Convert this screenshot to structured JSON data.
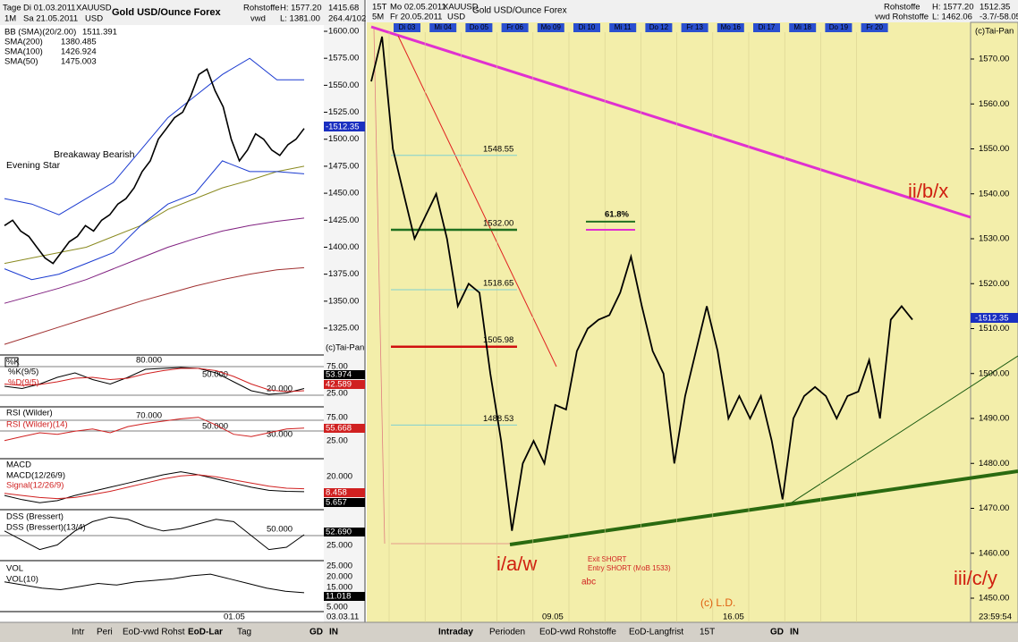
{
  "left": {
    "header": [
      "Tage",
      "Di 01.03.2011",
      "XAUUSD",
      "Gold USD/Ounce  Forex",
      "Rohstoffe",
      "1415.68",
      "1M",
      "Sa 21.05.2011",
      "USD",
      "vwd",
      "L: 1381.00",
      "264.4/102",
      "H: 1577.20"
    ],
    "legend": [
      {
        "name": "BB (SMA)(20/2.00)",
        "value": "1511.391",
        "color": "#1a3ad0"
      },
      {
        "name": "SMA(200)",
        "value": "1380.485",
        "color": "#a03030"
      },
      {
        "name": "SMA(100)",
        "value": "1426.924",
        "color": "#802080"
      },
      {
        "name": "SMA(50)",
        "value": "1475.003",
        "color": "#8a8a20"
      }
    ],
    "annotations": [
      "Breakaway Bearish",
      "Evening Star",
      "(c)Tai-Pan",
      "-1512.35"
    ],
    "yticks": [
      {
        "value": 1325,
        "label": "1325.00"
      },
      {
        "value": 1350,
        "label": "1350.00"
      },
      {
        "value": 1375,
        "label": "1375.00"
      },
      {
        "value": 1400,
        "label": "1400.00"
      },
      {
        "value": 1425,
        "label": "1425.00"
      },
      {
        "value": 1450,
        "label": "1450.00"
      },
      {
        "value": 1475,
        "label": "1475.00"
      },
      {
        "value": 1500,
        "label": "1500.00"
      },
      {
        "value": 1525,
        "label": "1525.00"
      },
      {
        "value": 1550,
        "label": "1550.00"
      },
      {
        "value": 1575,
        "label": "1575.00"
      },
      {
        "value": 1600,
        "label": "1600.00"
      }
    ],
    "series": [
      {
        "name": "XAUUSD",
        "color": "#000000",
        "values": [
          1420,
          1425,
          1415,
          1410,
          1400,
          1390,
          1385,
          1395,
          1405,
          1410,
          1420,
          1415,
          1425,
          1430,
          1440,
          1445,
          1455,
          1470,
          1480,
          1500,
          1510,
          1520,
          1525,
          1540,
          1560,
          1565,
          1545,
          1530,
          1500,
          1480,
          1490,
          1505,
          1500,
          1490,
          1485,
          1495,
          1500,
          1510
        ]
      },
      {
        "name": "BB upper",
        "color": "#1a3ad0",
        "values": [
          1445,
          1440,
          1430,
          1445,
          1460,
          1490,
          1520,
          1540,
          1560,
          1575,
          1555,
          1555
        ]
      },
      {
        "name": "BB lower",
        "color": "#1a3ad0",
        "values": [
          1380,
          1370,
          1375,
          1385,
          1395,
          1420,
          1440,
          1450,
          1480,
          1470,
          1470,
          1468
        ]
      },
      {
        "name": "SMA(50)",
        "color": "#8a8a20",
        "values": [
          1385,
          1390,
          1395,
          1400,
          1410,
          1420,
          1435,
          1445,
          1455,
          1462,
          1470,
          1475
        ]
      },
      {
        "name": "SMA(100)",
        "color": "#802080",
        "values": [
          1348,
          1355,
          1362,
          1370,
          1380,
          1390,
          1400,
          1408,
          1415,
          1420,
          1424,
          1427
        ]
      },
      {
        "name": "SMA(200)",
        "color": "#a03030",
        "values": [
          1310,
          1318,
          1326,
          1334,
          1342,
          1350,
          1357,
          1364,
          1370,
          1375,
          1379,
          1381
        ]
      }
    ],
    "indicators": [
      {
        "title": "%K",
        "labels": [
          "%K(9/5)",
          "%D(9/5)"
        ],
        "levels": [
          "80.000",
          "50.000",
          "20.000"
        ],
        "scale": [
          "75.00",
          "53.974",
          "42.589",
          "25.00"
        ],
        "ylim": [
          0,
          100
        ],
        "series": [
          {
            "color": "#000000",
            "values": [
              40,
              35,
              45,
              60,
              70,
              55,
              45,
              60,
              78,
              80,
              82,
              80,
              70,
              50,
              30,
              22,
              25,
              35
            ]
          },
          {
            "color": "#d02020",
            "values": [
              45,
              42,
              44,
              50,
              58,
              60,
              55,
              58,
              68,
              75,
              80,
              80,
              75,
              62,
              45,
              32,
              28,
              30
            ]
          }
        ]
      },
      {
        "title": "RSI (Wilder)",
        "labels": [
          "RSI (Wilder)(14)"
        ],
        "levels": [
          "70.000",
          "50.000",
          "30.000"
        ],
        "scale": [
          "75.00",
          "55.668",
          "25.00"
        ],
        "ylim": [
          20,
          80
        ],
        "series": [
          {
            "color": "#d02020",
            "values": [
              40,
              45,
              50,
              48,
              52,
              55,
              50,
              58,
              62,
              65,
              68,
              70,
              60,
              48,
              45,
              50,
              55,
              56
            ]
          }
        ]
      },
      {
        "title": "MACD",
        "labels": [
          "MACD(12/26/9)",
          "Signal(12/26/9)"
        ],
        "levels": [],
        "scale": [
          "20.000",
          "8.458",
          "5.657"
        ],
        "ylim": [
          -10,
          35
        ],
        "series": [
          {
            "color": "#000000",
            "values": [
              2,
              -2,
              -5,
              -3,
              2,
              6,
              10,
              14,
              18,
              22,
              25,
              22,
              18,
              14,
              10,
              7,
              6,
              5.7
            ]
          },
          {
            "color": "#d02020",
            "values": [
              4,
              2,
              0,
              -1,
              0,
              3,
              6,
              10,
              14,
              18,
              21,
              22,
              20,
              17,
              14,
              11,
              9,
              8.5
            ]
          }
        ]
      },
      {
        "title": "DSS (Bressert)",
        "labels": [
          "DSS (Bressert)(13/4)"
        ],
        "levels": [
          "50.000"
        ],
        "scale": [
          "52.690",
          "25.000"
        ],
        "ylim": [
          0,
          100
        ],
        "series": [
          {
            "color": "#000000",
            "values": [
              60,
              40,
              20,
              30,
              60,
              80,
              90,
              85,
              70,
              60,
              65,
              75,
              85,
              80,
              50,
              20,
              25,
              52
            ]
          }
        ]
      },
      {
        "title": "VOL",
        "labels": [
          "VOL(10)"
        ],
        "levels": [],
        "scale": [
          "25.000",
          "20.000",
          "15.000",
          "11.018",
          "5.000"
        ],
        "ylim": [
          0,
          30
        ],
        "series": [
          {
            "color": "#000000",
            "values": [
              18,
              16,
              14,
              13,
              15,
              17,
              16,
              18,
              19,
              20,
              22,
              23,
              20,
              17,
              14,
              12,
              11
            ]
          }
        ]
      }
    ],
    "footer": [
      "01.05",
      "03.03.11"
    ],
    "toolbar": [
      "Intr",
      "Peri",
      "EoD-vwd Rohst",
      "EoD-Lar",
      "Tag",
      "GD",
      "IN"
    ]
  },
  "right": {
    "header": [
      "15T",
      "Mo 02.05.2011",
      "XAUUSD",
      "Gold USD/Ounce  Forex",
      "5M",
      "Fr 20.05.2011",
      "USD",
      "Rohstoffe",
      "vwd Rohstoffe",
      "H: 1577.20",
      "L: 1462.06",
      "1512.35",
      "-3.7/-58.05"
    ],
    "days": [
      "Di 03",
      "Mi 04",
      "Do 05",
      "Fr 06",
      "Mo 09",
      "Di 10",
      "Mi 11",
      "Do 12",
      "Fr 13",
      "Mo 16",
      "Di 17",
      "Mi 18",
      "Do 19",
      "Fr 20"
    ],
    "yticks": [
      {
        "value": 1450,
        "label": "1450.00"
      },
      {
        "value": 1460,
        "label": "1460.00"
      },
      {
        "value": 1470,
        "label": "1470.00"
      },
      {
        "value": 1480,
        "label": "1480.00"
      },
      {
        "value": 1490,
        "label": "1490.00"
      },
      {
        "value": 1500,
        "label": "1500.00"
      },
      {
        "value": 1510,
        "label": "1510.00"
      },
      {
        "value": 1520,
        "label": "1520.00"
      },
      {
        "value": 1530,
        "label": "1530.00"
      },
      {
        "value": 1540,
        "label": "1540.00"
      },
      {
        "value": 1550,
        "label": "1550.00"
      },
      {
        "value": 1560,
        "label": "1560.00"
      },
      {
        "value": 1570,
        "label": "1570.00"
      }
    ],
    "levels": [
      {
        "value": 1548.55,
        "label": "1548.55",
        "color": "#7fd0d0"
      },
      {
        "value": 1532,
        "label": "1532.00",
        "color": "#207020"
      },
      {
        "value": 1518.65,
        "label": "1518.65",
        "color": "#7fd0d0"
      },
      {
        "value": 1505.98,
        "label": "1505.98",
        "color": "#d01010"
      },
      {
        "value": 1488.53,
        "label": "1488.53",
        "color": "#7fd0d0"
      }
    ],
    "fib": {
      "label": "61.8%",
      "values": [
        1533,
        1532
      ]
    },
    "series": [
      {
        "name": "XAUUSD",
        "color": "#000000",
        "values": [
          1565,
          1575,
          1550,
          1540,
          1530,
          1535,
          1540,
          1530,
          1515,
          1520,
          1518,
          1500,
          1485,
          1465,
          1480,
          1485,
          1480,
          1493,
          1492,
          1505,
          1510,
          1512,
          1513,
          1518,
          1526,
          1515,
          1505,
          1500,
          1480,
          1495,
          1505,
          1515,
          1505,
          1490,
          1495,
          1490,
          1495,
          1485,
          1472,
          1490,
          1495,
          1497,
          1495,
          1490,
          1495,
          1496,
          1503,
          1490,
          1512,
          1515,
          1512
        ]
      }
    ],
    "annotations": [
      "ii/b/x",
      "i/a/w",
      "iii/c/y",
      "Exit SHORT",
      "Entry SHORT (MoB 1533)",
      "abc",
      "(c) L.D.",
      "(c)Tai-Pan",
      "-1512.35"
    ],
    "footer": [
      "09.05",
      "16.05",
      "23:59:54"
    ],
    "toolbar": [
      "Intraday",
      "Perioden",
      "EoD-vwd Rohstoffe",
      "EoD-Langfrist",
      "15T",
      "GD",
      "IN"
    ]
  }
}
